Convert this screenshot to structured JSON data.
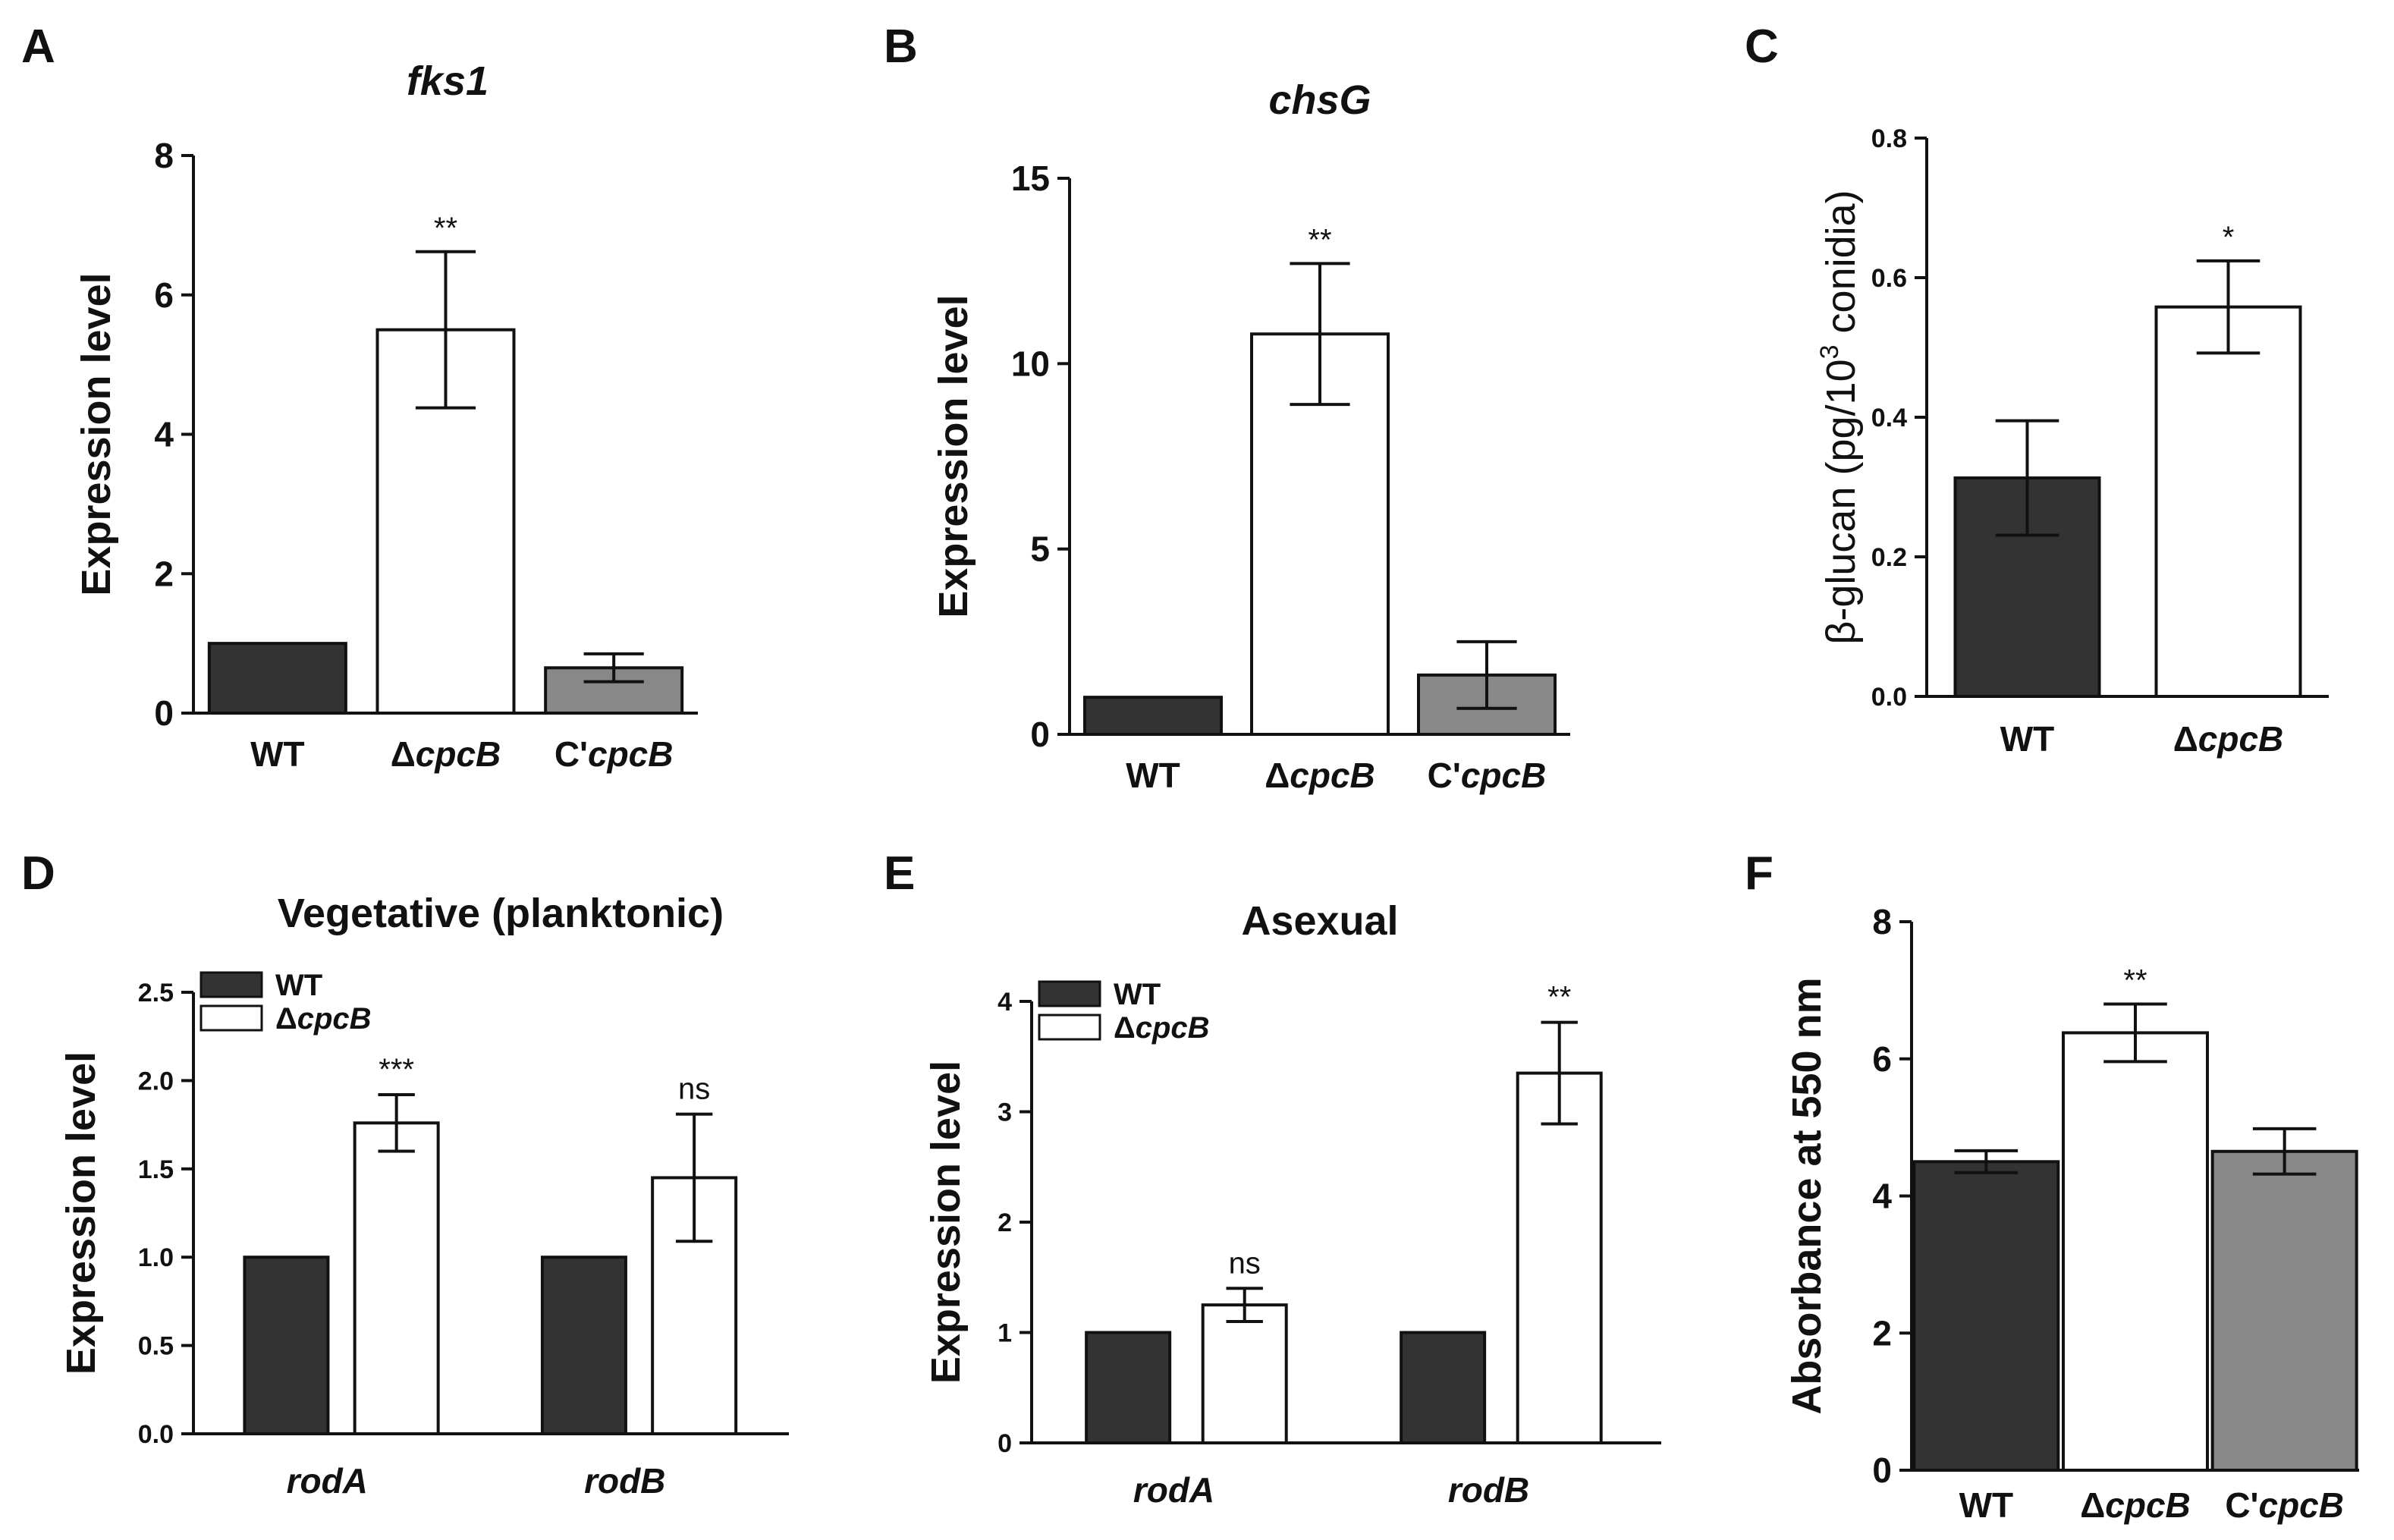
{
  "chart_data": [
    {
      "panel": "A",
      "type": "bar",
      "title": "fks1",
      "title_italic": true,
      "ylabel": "Expression level",
      "ylim": [
        0,
        8
      ],
      "yticks": [
        0,
        2,
        4,
        6,
        8
      ],
      "categories": [
        "WT",
        "ΔcpcB",
        "C'cpcB"
      ],
      "values": [
        1.0,
        5.5,
        0.65
      ],
      "errors": [
        0,
        1.12,
        0.2
      ],
      "annotations": [
        "",
        "**",
        ""
      ],
      "colors": [
        "#333333",
        "#ffffff",
        "#888888"
      ]
    },
    {
      "panel": "B",
      "type": "bar",
      "title": "chsG",
      "title_italic": true,
      "ylabel": "Expression level",
      "ylim": [
        0,
        15
      ],
      "yticks": [
        0,
        5,
        10,
        15
      ],
      "categories": [
        "WT",
        "ΔcpcB",
        "C'cpcB"
      ],
      "values": [
        1.0,
        10.8,
        1.6
      ],
      "errors": [
        0,
        1.9,
        0.9
      ],
      "annotations": [
        "",
        "**",
        ""
      ],
      "colors": [
        "#333333",
        "#ffffff",
        "#888888"
      ]
    },
    {
      "panel": "C",
      "type": "bar",
      "title": "",
      "ylabel": "β-glucan  (pg/10³ conidia)",
      "ylim": [
        0,
        0.8
      ],
      "yticks": [
        "0.0",
        "0.2",
        "0.4",
        "0.6",
        "0.8"
      ],
      "categories": [
        "WT",
        "ΔcpcB"
      ],
      "values": [
        0.313,
        0.558
      ],
      "errors": [
        0.082,
        0.066
      ],
      "annotations": [
        "",
        "*"
      ],
      "colors": [
        "#333333",
        "#ffffff"
      ]
    },
    {
      "panel": "D",
      "type": "bar",
      "title": "Vegetative (planktonic)",
      "ylabel": "Expression level",
      "ylim": [
        0,
        2.5
      ],
      "yticks": [
        "0.0",
        "0.5",
        "1.0",
        "1.5",
        "2.0",
        "2.5"
      ],
      "categories": [
        "rodA",
        "rodB"
      ],
      "series": [
        {
          "name": "WT",
          "values": [
            1.0,
            1.0
          ],
          "errors": [
            0,
            0
          ],
          "color": "#333333"
        },
        {
          "name": "ΔcpcB",
          "values": [
            1.76,
            1.45
          ],
          "errors": [
            0.16,
            0.36
          ],
          "color": "#ffffff"
        }
      ],
      "annotations": [
        "***",
        "ns"
      ],
      "legend_position": "top-left"
    },
    {
      "panel": "E",
      "type": "bar",
      "title": "Asexual",
      "ylabel": "Expression level",
      "ylim": [
        0,
        4
      ],
      "yticks": [
        "0",
        "1",
        "2",
        "3",
        "4"
      ],
      "categories": [
        "rodA",
        "rodB"
      ],
      "series": [
        {
          "name": "WT",
          "values": [
            1.0,
            1.0
          ],
          "errors": [
            0,
            0
          ],
          "color": "#333333"
        },
        {
          "name": "ΔcpcB",
          "values": [
            1.25,
            3.35
          ],
          "errors": [
            0.15,
            0.46
          ],
          "color": "#ffffff"
        }
      ],
      "annotations": [
        "ns",
        "**"
      ],
      "legend_position": "top-left"
    },
    {
      "panel": "F",
      "type": "bar",
      "title": "",
      "ylabel": "Absorbance at 550 nm",
      "ylim": [
        0,
        8
      ],
      "yticks": [
        0,
        2,
        4,
        6,
        8
      ],
      "categories": [
        "WT",
        "ΔcpcB",
        "C'cpcB"
      ],
      "values": [
        4.5,
        6.38,
        4.65
      ],
      "errors": [
        0.16,
        0.42,
        0.33
      ],
      "annotations": [
        "",
        "**",
        ""
      ],
      "colors": [
        "#333333",
        "#ffffff",
        "#888888"
      ]
    }
  ]
}
